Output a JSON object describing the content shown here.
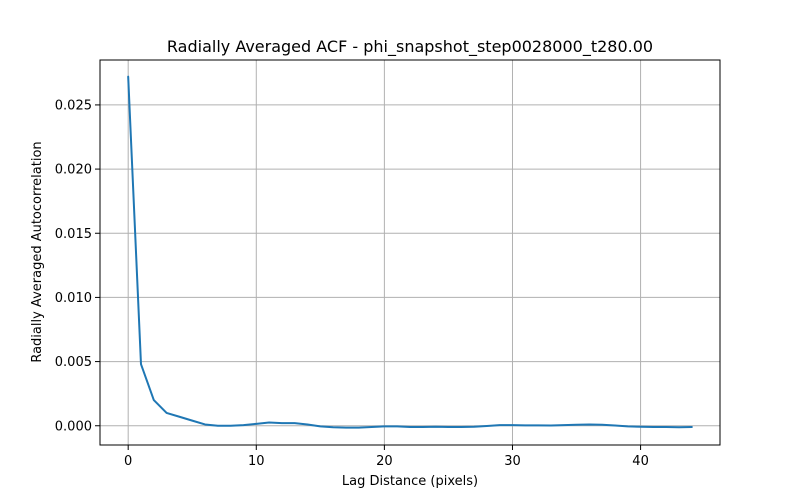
{
  "chart_data": {
    "type": "line",
    "title": "Radially Averaged ACF - phi_snapshot_step0028000_t280.00",
    "xlabel": "Lag Distance (pixels)",
    "ylabel": "Radially Averaged Autocorrelation",
    "xlim": [
      -2.2,
      46.2
    ],
    "ylim": [
      -0.0015,
      0.0285
    ],
    "xticks": [
      0,
      10,
      20,
      30,
      40
    ],
    "xtick_labels": [
      "0",
      "10",
      "20",
      "30",
      "40"
    ],
    "yticks": [
      0.0,
      0.005,
      0.01,
      0.015,
      0.02,
      0.025
    ],
    "ytick_labels": [
      "0.000",
      "0.005",
      "0.010",
      "0.015",
      "0.020",
      "0.025"
    ],
    "grid": true,
    "color": "#1f77b4",
    "series": [
      {
        "x": [
          0,
          1,
          2,
          3,
          4,
          5,
          6,
          7,
          8,
          9,
          10,
          11,
          12,
          13,
          14,
          15,
          16,
          17,
          18,
          19,
          20,
          21,
          22,
          23,
          24,
          25,
          26,
          27,
          28,
          29,
          30,
          31,
          32,
          33,
          34,
          35,
          36,
          37,
          38,
          39,
          40,
          41,
          42,
          43,
          44
        ],
        "values": [
          0.0272,
          0.0048,
          0.002,
          0.001,
          0.0007,
          0.0004,
          0.0001,
          0.0,
          0.0,
          5e-05,
          0.00015,
          0.00025,
          0.0002,
          0.0002,
          0.0001,
          -5e-05,
          -0.00012,
          -0.00015,
          -0.00015,
          -0.0001,
          -5e-05,
          -5e-05,
          -0.0001,
          -0.0001,
          -8e-05,
          -0.0001,
          -0.0001,
          -8e-05,
          -2e-05,
          5e-05,
          5e-05,
          3e-05,
          3e-05,
          2e-05,
          5e-05,
          8e-05,
          0.0001,
          8e-05,
          2e-05,
          -5e-05,
          -8e-05,
          -0.0001,
          -0.0001,
          -0.00012,
          -0.0001
        ]
      }
    ]
  }
}
